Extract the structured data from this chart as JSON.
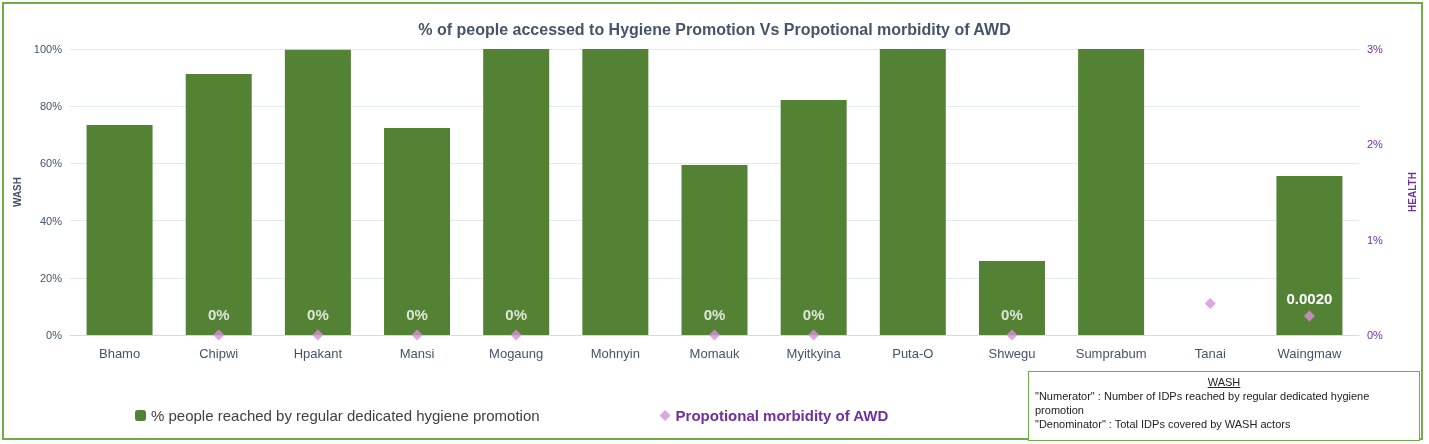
{
  "chart_data": {
    "type": "bar",
    "title": "% of people accessed to Hygiene Promotion Vs Propotional morbidity of AWD",
    "ylabel": "WASH",
    "y2label": "HEALTH",
    "categories": [
      "Bhamo",
      "Chipwi",
      "Hpakant",
      "Mansi",
      "Mogaung",
      "Mohnyin",
      "Momauk",
      "Myitkyina",
      "Puta-O",
      "Shwegu",
      "Sumprabum",
      "Tanai",
      "Waingmaw"
    ],
    "series": [
      {
        "name": "% people reached by regular dedicated hygiene promotion",
        "color": "#548235",
        "values": [
          73.4,
          91.3,
          99.7,
          72.4,
          100,
          100,
          59.4,
          82.2,
          100,
          25.9,
          100,
          null,
          55.6
        ]
      },
      {
        "name": "Propotional morbidity of AWD",
        "type": "scatter",
        "axis": "y2",
        "color": "#da8fdb",
        "marker": "diamond",
        "values": [
          null,
          0,
          0,
          0,
          0,
          null,
          0,
          0,
          null,
          0,
          null,
          0.33,
          0.2
        ],
        "value_labels": [
          null,
          "0%",
          "0%",
          "0%",
          "0%",
          null,
          "0%",
          "0%",
          null,
          "0%",
          null,
          null,
          null
        ]
      }
    ],
    "ylim": [
      0,
      100
    ],
    "yticks": [
      {
        "value": 0,
        "label": "0%"
      },
      {
        "value": 20,
        "label": "20%"
      },
      {
        "value": 40,
        "label": "40%"
      },
      {
        "value": 60,
        "label": "60%"
      },
      {
        "value": 80,
        "label": "80%"
      },
      {
        "value": 100,
        "label": "100%"
      }
    ],
    "y2lim": [
      0,
      3
    ],
    "y2ticks": [
      {
        "value": 0,
        "label": "0%"
      },
      {
        "value": 1,
        "label": "1%"
      },
      {
        "value": 2,
        "label": "2%"
      },
      {
        "value": 3,
        "label": "3%"
      }
    ],
    "grid": "y",
    "legend": "bottom",
    "annotations": [
      {
        "text": "0.0020",
        "x": "Waingmaw",
        "y": 0.2
      },
      "WASH",
      "\"Numerator\" : Number of IDPs reached by regular dedicated hygiene promotion",
      "\"Denominator\" : Total IDPs covered by WASH actors"
    ]
  }
}
